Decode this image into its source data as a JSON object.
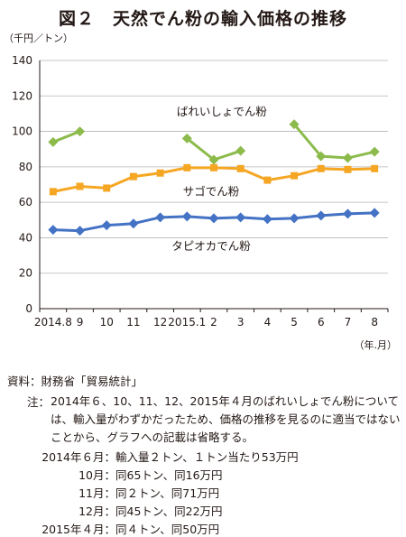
{
  "figure": {
    "title": "図２　天然でん粉の輸入価格の推移"
  },
  "chart_data": {
    "type": "line",
    "y_unit_label": "（千円／トン）",
    "x_unit_label": "（年.月）",
    "categories": [
      "2014.8",
      "9",
      "10",
      "11",
      "12",
      "2015.1",
      "2",
      "3",
      "4",
      "5",
      "6",
      "7",
      "8"
    ],
    "yticks": [
      0,
      20,
      40,
      60,
      80,
      100,
      120,
      140
    ],
    "ylim": [
      0,
      140
    ],
    "grid": true,
    "series": [
      {
        "name": "ばれいしょでん粉",
        "color": "#8cbb4c",
        "marker": "diamond",
        "values": [
          94,
          100,
          null,
          null,
          null,
          96,
          84,
          89,
          null,
          104,
          86,
          85,
          88.5
        ]
      },
      {
        "name": "サゴでん粉",
        "color": "#f5a623",
        "marker": "square",
        "values": [
          66,
          69,
          68,
          74.5,
          76.5,
          79.5,
          79.5,
          79,
          72.5,
          75,
          79,
          78.5,
          79
        ]
      },
      {
        "name": "タピオカでん粉",
        "color": "#4472c4",
        "marker": "diamond",
        "values": [
          44.5,
          44,
          47,
          48,
          51.5,
          52,
          51,
          51.5,
          50.5,
          51,
          52.5,
          53.5,
          54
        ]
      }
    ]
  },
  "notes": {
    "source": "資料：財務省「貿易統計」",
    "note_label": "注：",
    "note_text": "2014年６、10、11、12、2015年４月のばれいしょでん粉については、輸入量がわずかだったため、価格の推移を見るのに適当ではないことから、グラフへの記載は省略する。",
    "details": [
      {
        "label": "2014年６月：",
        "text": "輸入量２トン、１トン当たり53万円"
      },
      {
        "label": "10月：",
        "text": "同65トン、同16万円"
      },
      {
        "label": "11月：",
        "text": "同２トン、同71万円"
      },
      {
        "label": "12月：",
        "text": "同45トン、同22万円"
      },
      {
        "label": "2015年４月：",
        "text": "同４トン、同50万円"
      }
    ]
  }
}
